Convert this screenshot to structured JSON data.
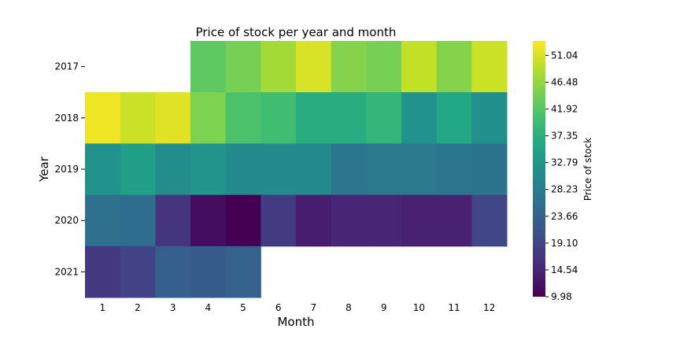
{
  "chart_data": {
    "type": "heatmap",
    "title": "Price of stock per year and month",
    "xlabel": "Month",
    "ylabel": "Year",
    "x": [
      "1",
      "2",
      "3",
      "4",
      "5",
      "6",
      "7",
      "8",
      "9",
      "10",
      "11",
      "12"
    ],
    "y": [
      "2017",
      "2018",
      "2019",
      "2020",
      "2021"
    ],
    "values": [
      [
        null,
        null,
        null,
        42.5,
        44.5,
        47.5,
        51.0,
        45.5,
        44.5,
        49.5,
        45.5,
        50.0
      ],
      [
        52.5,
        50.0,
        51.5,
        45.0,
        41.0,
        40.0,
        37.0,
        37.0,
        38.5,
        32.0,
        36.0,
        31.5
      ],
      [
        32.0,
        34.5,
        31.0,
        32.5,
        30.5,
        30.5,
        30.5,
        27.0,
        27.5,
        27.5,
        27.0,
        26.5
      ],
      [
        26.0,
        25.5,
        16.5,
        11.5,
        10.0,
        17.5,
        13.5,
        14.5,
        14.5,
        14.0,
        14.0,
        19.0
      ],
      [
        17.0,
        18.5,
        23.0,
        22.5,
        23.5,
        null,
        null,
        null,
        null,
        null,
        null,
        null
      ]
    ],
    "vmin": 9.98,
    "vmax": 53.5,
    "colormap": "viridis",
    "colorbar": {
      "label": "Price of stock",
      "ticks": [
        "9.98",
        "14.54",
        "19.10",
        "23.66",
        "28.23",
        "32.79",
        "37.35",
        "41.92",
        "46.48",
        "51.04"
      ],
      "tick_values": [
        9.98,
        14.54,
        19.1,
        23.66,
        28.23,
        32.79,
        37.35,
        41.92,
        46.48,
        51.04
      ]
    },
    "grid": false
  }
}
